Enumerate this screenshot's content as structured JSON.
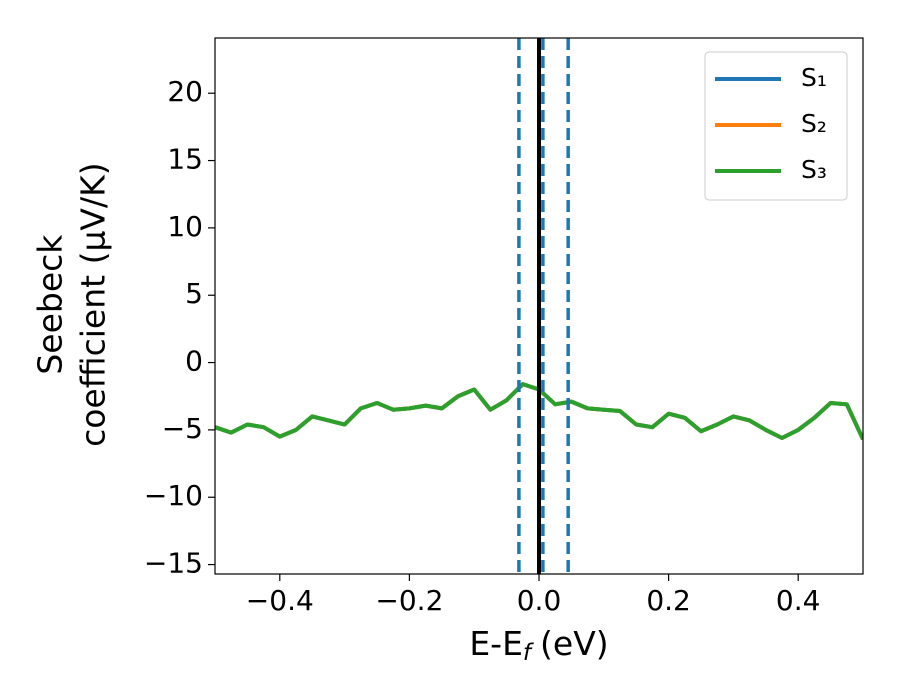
{
  "chart_data": {
    "type": "line",
    "xlabel": [
      "E-E",
      "f",
      "(eV)"
    ],
    "ylabel": [
      "Seebeck",
      "coefficient  (μV/K)"
    ],
    "x": [
      -0.5,
      -0.475,
      -0.45,
      -0.425,
      -0.4,
      -0.375,
      -0.35,
      -0.325,
      -0.3,
      -0.275,
      -0.25,
      -0.225,
      -0.2,
      -0.175,
      -0.15,
      -0.125,
      -0.1,
      -0.075,
      -0.05,
      -0.025,
      0,
      0.025,
      0.05,
      0.075,
      0.1,
      0.125,
      0.15,
      0.175,
      0.2,
      0.225,
      0.25,
      0.275,
      0.3,
      0.325,
      0.35,
      0.375,
      0.4,
      0.425,
      0.45,
      0.475,
      0.5
    ],
    "series": [
      {
        "name": "S₁",
        "color": "#1f77b4",
        "values": [
          -4.8,
          -5.2,
          -4.6,
          -4.8,
          -5.5,
          -5.0,
          -4.0,
          -4.3,
          -4.6,
          -3.4,
          -3.0,
          -3.5,
          -3.4,
          -3.2,
          -3.4,
          -2.5,
          -2.0,
          -3.5,
          -2.8,
          -1.6,
          -2.0,
          -3.1,
          -2.9,
          -3.4,
          -3.5,
          -3.6,
          -4.6,
          -4.8,
          -3.8,
          -4.1,
          -5.1,
          -4.6,
          -4.0,
          -4.3,
          -5.0,
          -5.6,
          -5.0,
          -4.1,
          -3.0,
          -3.1,
          -5.7
        ]
      },
      {
        "name": "S₂",
        "color": "#ff7f0e",
        "values": [
          -4.8,
          -5.2,
          -4.6,
          -4.8,
          -5.5,
          -5.0,
          -4.0,
          -4.3,
          -4.6,
          -3.4,
          -3.0,
          -3.5,
          -3.4,
          -3.2,
          -3.4,
          -2.5,
          -2.0,
          -3.5,
          -2.8,
          -1.6,
          -2.0,
          -3.1,
          -2.9,
          -3.4,
          -3.5,
          -3.6,
          -4.6,
          -4.8,
          -3.8,
          -4.1,
          -5.1,
          -4.6,
          -4.0,
          -4.3,
          -5.0,
          -5.6,
          -5.0,
          -4.1,
          -3.0,
          -3.1,
          -5.7
        ]
      },
      {
        "name": "S₃",
        "color": "#2ca02c",
        "values": [
          -4.8,
          -5.2,
          -4.6,
          -4.8,
          -5.5,
          -5.0,
          -4.0,
          -4.3,
          -4.6,
          -3.4,
          -3.0,
          -3.5,
          -3.4,
          -3.2,
          -3.4,
          -2.5,
          -2.0,
          -3.5,
          -2.8,
          -1.6,
          -2.0,
          -3.1,
          -2.9,
          -3.4,
          -3.5,
          -3.6,
          -4.6,
          -4.8,
          -3.8,
          -4.1,
          -5.1,
          -4.6,
          -4.0,
          -4.3,
          -5.0,
          -5.6,
          -5.0,
          -4.1,
          -3.0,
          -3.1,
          -5.7
        ]
      }
    ],
    "vlines": [
      {
        "value": -0.031,
        "color": "#1f77b4",
        "style": "dashed"
      },
      {
        "value": 0.006,
        "color": "#1f77b4",
        "style": "dashed"
      },
      {
        "value": 0.045,
        "color": "#1f77b4",
        "style": "dashed"
      },
      {
        "value": 0,
        "color": "#000000",
        "style": "solid"
      }
    ],
    "xlim": [
      -0.5,
      0.5
    ],
    "xticks": [
      {
        "value": -0.4,
        "label": "−0.4"
      },
      {
        "value": -0.2,
        "label": "−0.2"
      },
      {
        "value": 0,
        "label": "0.0"
      },
      {
        "value": 0.2,
        "label": "0.2"
      },
      {
        "value": 0.4,
        "label": "0.4"
      }
    ],
    "ylim": [
      -15.7,
      24.1
    ],
    "yticks": [
      {
        "value": -15,
        "label": "−15"
      },
      {
        "value": -10,
        "label": "−10"
      },
      {
        "value": -5,
        "label": "−5"
      },
      0,
      5,
      10,
      15,
      20
    ],
    "legend": "upper right",
    "grid": false
  }
}
